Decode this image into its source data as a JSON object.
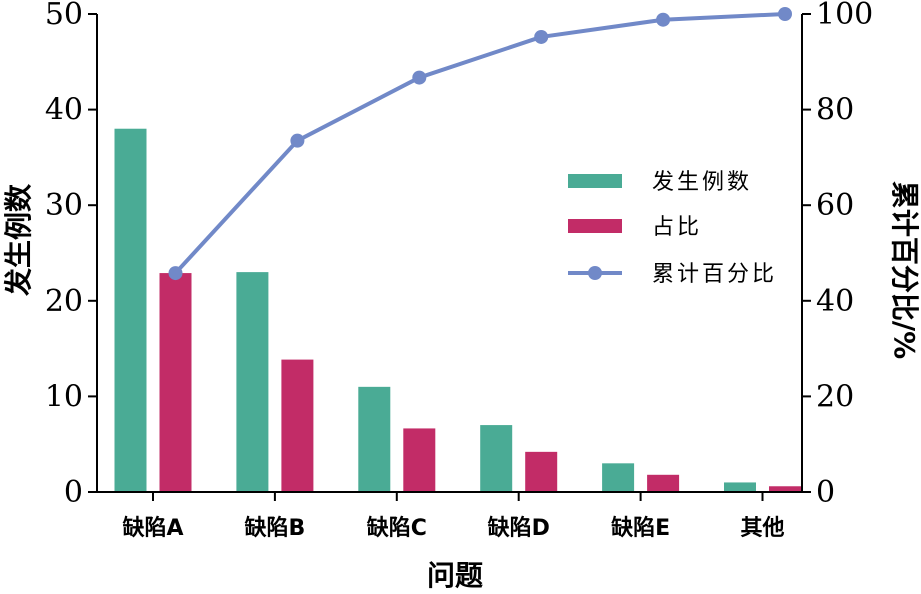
{
  "chart_data": {
    "type": "bar",
    "categories": [
      "缺陷A",
      "缺陷B",
      "缺陷C",
      "缺陷D",
      "缺陷E",
      "其他"
    ],
    "series": [
      {
        "name": "发生例数",
        "type": "bar",
        "axis": "left",
        "color": "#4aab95",
        "values": [
          38,
          23,
          11,
          7,
          3,
          1
        ]
      },
      {
        "name": "占比",
        "type": "bar",
        "axis": "right",
        "color": "#c22c67",
        "values": [
          45.8,
          27.7,
          13.3,
          8.4,
          3.6,
          1.2
        ]
      },
      {
        "name": "累计百分比",
        "type": "line",
        "axis": "right",
        "color": "#7189c8",
        "values": [
          45.8,
          73.5,
          86.7,
          95.2,
          98.8,
          100
        ]
      }
    ],
    "xlabel": "问题",
    "ylabel": "发生例数",
    "y2label": "累计百分比/%",
    "ylim": [
      0,
      50
    ],
    "y2lim": [
      0,
      100
    ],
    "yticks": [
      "0",
      "10",
      "20",
      "30",
      "40",
      "50"
    ],
    "y2ticks": [
      "0",
      "20",
      "40",
      "60",
      "80",
      "100"
    ],
    "legend_position": "right-middle",
    "grid": false
  }
}
